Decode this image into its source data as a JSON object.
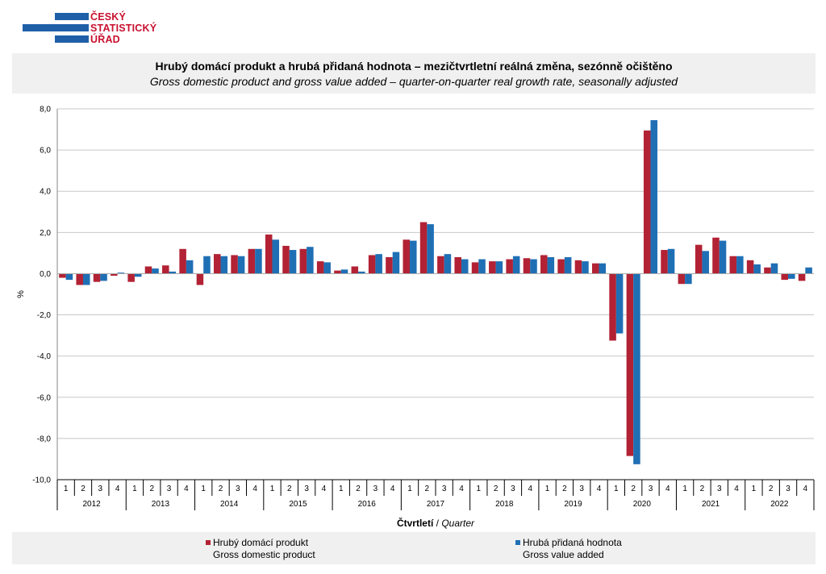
{
  "logo": {
    "lines": [
      "ČESKÝ",
      "STATISTICKÝ",
      "ÚŘAD"
    ],
    "colors": {
      "text": "#c8102e",
      "bars": "#1f5fa8"
    }
  },
  "header": {
    "title_cz": "Hrubý domácí produkt a hrubá přidaná hodnota – mezičtvrtletní reálná změna, sezónně očištěno",
    "title_en": "Gross domestic product and gross value added – quarter-on-quarter real growth rate, seasonally adjusted"
  },
  "chart_data": {
    "type": "bar",
    "ylabel": "%",
    "xlabel_cz": "Čtvrtletí",
    "xlabel_sep": " / ",
    "xlabel_en": "Quarter",
    "ylim": [
      -10,
      8
    ],
    "yticks": [
      "8,0",
      "6,0",
      "4,0",
      "2,0",
      "0,0",
      "-2,0",
      "-4,0",
      "-6,0",
      "-8,0",
      "-10,0"
    ],
    "grid": true,
    "years": [
      "2012",
      "2013",
      "2014",
      "2015",
      "2016",
      "2017",
      "2018",
      "2019",
      "2020",
      "2021",
      "2022"
    ],
    "quarters": [
      "1",
      "2",
      "3",
      "4"
    ],
    "series": [
      {
        "name_cz": "Hrubý domácí produkt",
        "name_en": "Gross domestic product",
        "color": "#b22234",
        "values": [
          -0.2,
          -0.55,
          -0.4,
          -0.1,
          -0.4,
          0.35,
          0.4,
          1.2,
          -0.55,
          0.95,
          0.9,
          1.2,
          1.9,
          1.35,
          1.2,
          0.6,
          0.15,
          0.35,
          0.9,
          0.8,
          1.65,
          2.5,
          0.85,
          0.8,
          0.55,
          0.6,
          0.7,
          0.75,
          0.9,
          0.7,
          0.65,
          0.5,
          -3.25,
          -8.85,
          6.95,
          1.15,
          -0.5,
          1.4,
          1.75,
          0.85,
          0.65,
          0.3,
          -0.3,
          -0.35
        ]
      },
      {
        "name_cz": "Hrubá přidaná hodnota",
        "name_en": "Gross value added",
        "color": "#1f6fb5",
        "values": [
          -0.3,
          -0.55,
          -0.35,
          0.05,
          -0.15,
          0.25,
          0.1,
          0.65,
          0.85,
          0.85,
          0.85,
          1.2,
          1.65,
          1.15,
          1.3,
          0.55,
          0.2,
          0.1,
          0.95,
          1.05,
          1.6,
          2.4,
          0.95,
          0.7,
          0.7,
          0.6,
          0.85,
          0.7,
          0.8,
          0.8,
          0.6,
          0.5,
          -2.9,
          -9.25,
          7.45,
          1.2,
          -0.5,
          1.1,
          1.6,
          0.85,
          0.45,
          0.5,
          -0.25,
          0.3
        ]
      }
    ],
    "legend_position": "bottom"
  }
}
